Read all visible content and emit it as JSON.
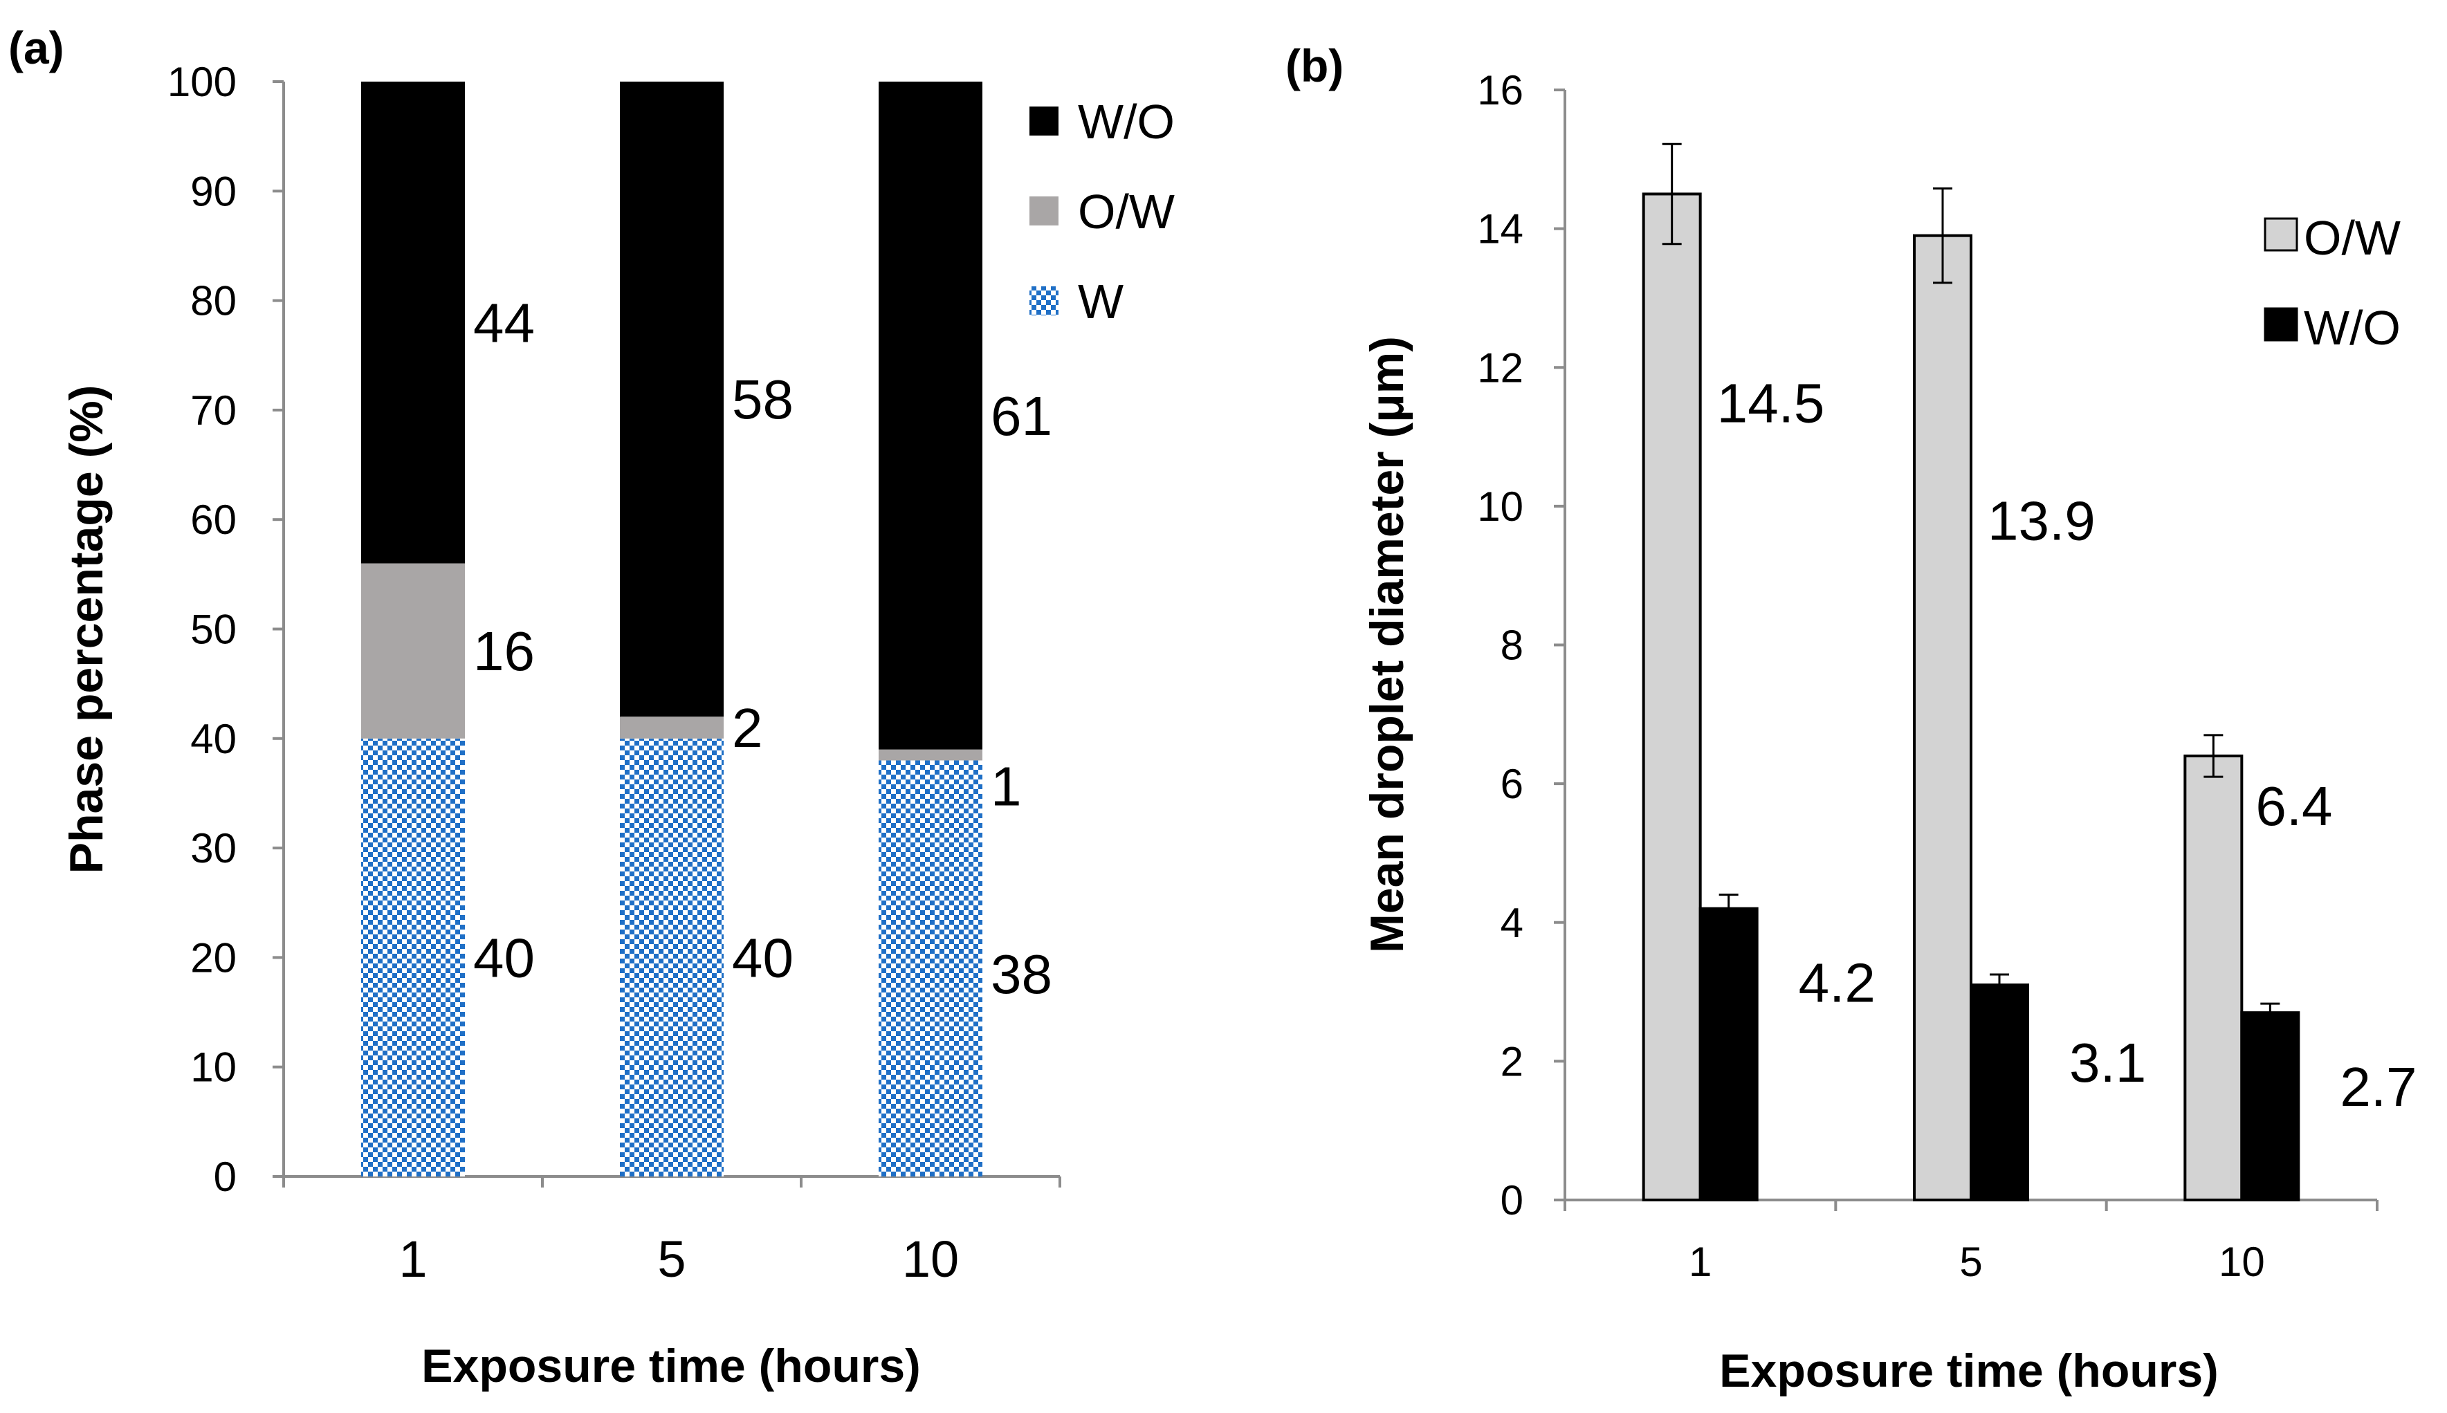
{
  "figure": {
    "panel_a_label": "(a)",
    "panel_b_label": "(b)"
  },
  "colors": {
    "wo": "#000000",
    "ow_a": "#a9a6a6",
    "ow_b": "#d3d3d3",
    "w_pattern": "#1f6fc6",
    "axis": "#8c8c8c"
  },
  "chart_data": [
    {
      "type": "bar",
      "stacked": true,
      "title": "(a)",
      "categories": [
        "1",
        "5",
        "10"
      ],
      "series": [
        {
          "name": "W",
          "values": [
            40,
            40,
            38
          ],
          "labels": [
            "40",
            "40",
            "38"
          ],
          "fill": "checkered-blue"
        },
        {
          "name": "O/W",
          "values": [
            16,
            2,
            1
          ],
          "labels": [
            "16",
            "2",
            "1"
          ],
          "fill": "gray"
        },
        {
          "name": "W/O",
          "values": [
            44,
            58,
            61
          ],
          "labels": [
            "44",
            "58",
            "61"
          ],
          "fill": "black"
        }
      ],
      "legend_order": [
        "W/O",
        "O/W",
        "W"
      ],
      "legend_position": "top-right",
      "xlabel": "Exposure time (hours)",
      "ylabel": "Phase percentage (%)",
      "ylim": [
        0,
        100
      ],
      "yticks": [
        "0",
        "10",
        "20",
        "30",
        "40",
        "50",
        "60",
        "70",
        "80",
        "90",
        "100"
      ],
      "grid": false
    },
    {
      "type": "bar",
      "stacked": false,
      "title": "(b)",
      "categories": [
        "1",
        "5",
        "10"
      ],
      "series": [
        {
          "name": "O/W",
          "values": [
            14.5,
            13.9,
            6.4
          ],
          "errors": [
            0.72,
            0.68,
            0.3
          ],
          "labels": [
            "14.5",
            "13.9",
            "6.4"
          ],
          "fill": "light-gray"
        },
        {
          "name": "W/O",
          "values": [
            4.2,
            3.1,
            2.7
          ],
          "errors": [
            0.2,
            0.15,
            0.13
          ],
          "labels": [
            "4.2",
            "3.1",
            "2.7"
          ],
          "fill": "black"
        }
      ],
      "legend_position": "top-right",
      "xlabel": "Exposure time (hours)",
      "ylabel": "Mean droplet diameter (μm)",
      "ylim": [
        0,
        16
      ],
      "yticks": [
        "0",
        "2",
        "4",
        "6",
        "8",
        "10",
        "12",
        "14",
        "16"
      ],
      "grid": false
    }
  ]
}
